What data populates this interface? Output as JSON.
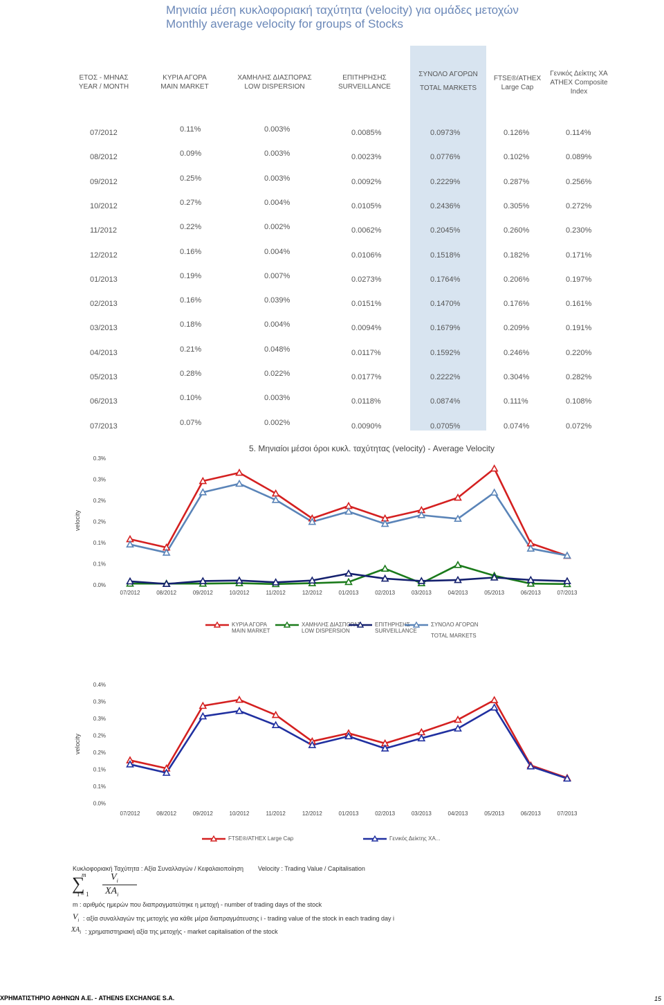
{
  "title": {
    "greek": "Μηνιαία μέση κυκλοφοριακή ταχύτητα (velocity) για ομάδες μετοχών",
    "english": "Monthly average velocity for groups of Stocks"
  },
  "table": {
    "headers": [
      {
        "gr": "ΕΤΟΣ - ΜΗΝΑΣ",
        "en": "YEAR / MONTH"
      },
      {
        "gr": "ΚΥΡΙΑ ΑΓΟΡΑ",
        "en": "MAIN MARKET"
      },
      {
        "gr": "ΧΑΜΗΛΗΣ ΔΙΑΣΠΟΡΑΣ",
        "en": "LOW DISPERSION"
      },
      {
        "gr": "ΕΠΙΤΗΡΗΣΗΣ",
        "en": "SURVEILLANCE"
      },
      {
        "gr": "ΣΥΝΟΛΟ ΑΓΟΡΩΝ",
        "en": "TOTAL MARKETS"
      },
      {
        "gr": "FTSE®/ATHEX",
        "en": "Large Cap"
      },
      {
        "gr": "Γενικός Δείκτης ΧΑ",
        "en": "ATHEX Composite",
        "en2": "Index"
      }
    ],
    "rows": [
      [
        "07/2012",
        "0.11%",
        "0.003%",
        "0.0085%",
        "0.0973%",
        "0.126%",
        "0.114%"
      ],
      [
        "08/2012",
        "0.09%",
        "0.003%",
        "0.0023%",
        "0.0776%",
        "0.102%",
        "0.089%"
      ],
      [
        "09/2012",
        "0.25%",
        "0.003%",
        "0.0092%",
        "0.2229%",
        "0.287%",
        "0.256%"
      ],
      [
        "10/2012",
        "0.27%",
        "0.004%",
        "0.0105%",
        "0.2436%",
        "0.305%",
        "0.272%"
      ],
      [
        "11/2012",
        "0.22%",
        "0.002%",
        "0.0062%",
        "0.2045%",
        "0.260%",
        "0.230%"
      ],
      [
        "12/2012",
        "0.16%",
        "0.004%",
        "0.0106%",
        "0.1518%",
        "0.182%",
        "0.171%"
      ],
      [
        "01/2013",
        "0.19%",
        "0.007%",
        "0.0273%",
        "0.1764%",
        "0.206%",
        "0.197%"
      ],
      [
        "02/2013",
        "0.16%",
        "0.039%",
        "0.0151%",
        "0.1470%",
        "0.176%",
        "0.161%"
      ],
      [
        "03/2013",
        "0.18%",
        "0.004%",
        "0.0094%",
        "0.1679%",
        "0.209%",
        "0.191%"
      ],
      [
        "04/2013",
        "0.21%",
        "0.048%",
        "0.0117%",
        "0.1592%",
        "0.246%",
        "0.220%"
      ],
      [
        "05/2013",
        "0.28%",
        "0.022%",
        "0.0177%",
        "0.2222%",
        "0.304%",
        "0.282%"
      ],
      [
        "06/2013",
        "0.10%",
        "0.003%",
        "0.0118%",
        "0.0874%",
        "0.111%",
        "0.108%"
      ],
      [
        "07/2013",
        "0.07%",
        "0.002%",
        "0.0090%",
        "0.0705%",
        "0.074%",
        "0.072%"
      ]
    ]
  },
  "chart_data": [
    {
      "type": "line",
      "title": "5. Μηνιαίοι μέσοι όροι κυκλ. ταχύτητας (velocity) - Average Velocity",
      "ylabel": "velocity",
      "xlabel": "",
      "categories": [
        "07/2012",
        "08/2012",
        "09/2012",
        "10/2012",
        "11/2012",
        "12/2012",
        "01/2013",
        "02/2013",
        "03/2013",
        "04/2013",
        "05/2013",
        "06/2013",
        "07/2013"
      ],
      "ytick_labels": [
        "0.3%",
        "0.3%",
        "0.2%",
        "0.2%",
        "0.1%",
        "0.1%",
        "0.0%"
      ],
      "ylim": [
        0,
        0.3
      ],
      "series": [
        {
          "name": "ΚΥΡΙΑ ΑΓΟΡΑ MAIN MARKET",
          "color": "#d42020",
          "values": [
            0.11,
            0.09,
            0.25,
            0.27,
            0.22,
            0.16,
            0.19,
            0.16,
            0.18,
            0.21,
            0.28,
            0.1,
            0.07
          ]
        },
        {
          "name": "ΧΑΜΗΛΗΣ ΔΙΑΣΠΟΡΑΣ LOW DISPERSION",
          "color": "#1a7a1a",
          "values": [
            0.003,
            0.003,
            0.003,
            0.004,
            0.002,
            0.004,
            0.007,
            0.039,
            0.004,
            0.048,
            0.022,
            0.003,
            0.002
          ]
        },
        {
          "name": "ΕΠΙΤΗΡΗΣΗΣ SURVEILLANCE",
          "color": "#14206e",
          "values": [
            0.0085,
            0.0023,
            0.0092,
            0.0105,
            0.0062,
            0.0106,
            0.0273,
            0.0151,
            0.0094,
            0.0117,
            0.0177,
            0.0118,
            0.009
          ]
        },
        {
          "name": "ΣΥΝΟΛΟ ΑΓΟΡΩΝ TOTAL MARKETS",
          "color": "#5a84b8",
          "values": [
            0.0973,
            0.0776,
            0.2229,
            0.2436,
            0.2045,
            0.1518,
            0.1764,
            0.147,
            0.1679,
            0.1592,
            0.2222,
            0.0874,
            0.0705
          ]
        }
      ],
      "legend": [
        {
          "l1": "ΚΥΡΙΑ ΑΓΟΡΑ",
          "l2": "MAIN MARKET",
          "color": "#d42020"
        },
        {
          "l1": "ΧΑΜΗΛΗΣ ΔΙΑΣΠΟΡΑΣ",
          "l2": "LOW DISPERSION",
          "color": "#1a7a1a"
        },
        {
          "l1": "ΕΠΙΤΗΡΗΣΗΣ",
          "l2": "SURVEILLANCE",
          "color": "#14206e"
        },
        {
          "l1": "ΣΥΝΟΛΟ ΑΓΟΡΩΝ",
          "l2": "TOTAL MARKETS",
          "color": "#5a84b8"
        }
      ]
    },
    {
      "type": "line",
      "title": "",
      "ylabel": "velocity",
      "xlabel": "",
      "categories": [
        "07/2012",
        "08/2012",
        "09/2012",
        "10/2012",
        "11/2012",
        "12/2012",
        "01/2013",
        "02/2013",
        "03/2013",
        "04/2013",
        "05/2013",
        "06/2013",
        "07/2013"
      ],
      "ytick_labels": [
        "0.4%",
        "0.3%",
        "0.3%",
        "0.2%",
        "0.2%",
        "0.1%",
        "0.1%",
        "0.0%"
      ],
      "ylim": [
        0,
        0.35
      ],
      "series": [
        {
          "name": "FTSE®/ATHEX Large Cap",
          "color": "#d42020",
          "values": [
            0.126,
            0.102,
            0.287,
            0.305,
            0.26,
            0.182,
            0.206,
            0.176,
            0.209,
            0.246,
            0.304,
            0.111,
            0.074
          ]
        },
        {
          "name": "Γενικός Δείκτης ΧΑ...",
          "color": "#2030a0",
          "values": [
            0.114,
            0.089,
            0.256,
            0.272,
            0.23,
            0.171,
            0.197,
            0.161,
            0.191,
            0.22,
            0.282,
            0.108,
            0.072
          ]
        }
      ],
      "legend": [
        {
          "l1": "FTSE®/ATHEX Large Cap",
          "color": "#d42020"
        },
        {
          "l1": "Γενικός Δείκτης ΧΑ...",
          "color": "#2030a0"
        }
      ]
    }
  ],
  "formula": {
    "definition": "Κυκλοφοριακή Ταχύτητα : Αξία Συναλλαγών / Κεφαλαιοποίηση",
    "definition_en": "Velocity : Trading Value / Capitalisation",
    "sum_top": "m",
    "sum_bottom": "i = 1",
    "numerator": "V",
    "numerator_sub": "i",
    "denominator": "XA",
    "denominator_sub": "i",
    "m_desc": "m : αριθμός ημερών που διαπραγματεύτηκε η μετοχή - number of trading days of the stock",
    "v_symbol": "V",
    "v_sub": "i",
    "v_desc": ": αξία συναλλαγών της μετοχής για κάθε μέρα διαπραγμάτευσης i - trading value of the stock in each trading day i",
    "xa_symbol": "XA",
    "xa_sub": "i",
    "xa_desc": ": χρηματιστηριακή αξία της μετοχής - market capitalisation of the stock"
  },
  "footer": {
    "text": "ΧΡΗΜΑΤΙΣΤΗΡΙΟ ΑΘΗΝΩΝ Α.Ε. - ATHENS EXCHANGE S.A.",
    "page": "15"
  }
}
